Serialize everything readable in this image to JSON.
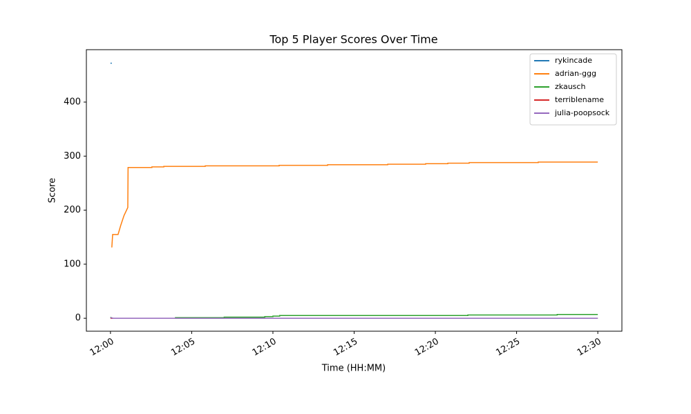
{
  "chart_data": {
    "type": "line",
    "title": "Top 5 Player Scores Over Time",
    "x_label": "Time (HH:MM)",
    "y_label": "Score",
    "xlim": [
      "11:58:31",
      "12:31:29"
    ],
    "xticks": [
      {
        "value": "12:00:00",
        "label": "12:00"
      },
      {
        "value": "12:05:00",
        "label": "12:05"
      },
      {
        "value": "12:10:00",
        "label": "12:10"
      },
      {
        "value": "12:15:00",
        "label": "12:15"
      },
      {
        "value": "12:20:00",
        "label": "12:20"
      },
      {
        "value": "12:25:00",
        "label": "12:25"
      },
      {
        "value": "12:30:00",
        "label": "12:30"
      }
    ],
    "ylim": [
      -24,
      497
    ],
    "yticks": [
      0,
      100,
      200,
      300,
      400
    ],
    "legend": "upper right",
    "series": [
      {
        "name": "rykincade",
        "color": "#1f77b4",
        "x": [
          "12:00:00",
          "12:00:05"
        ],
        "values": [
          472,
          472
        ]
      },
      {
        "name": "adrian-ggg",
        "color": "#ff7f0e",
        "x": [
          "12:00:05",
          "12:00:08",
          "12:00:28",
          "12:00:38",
          "12:00:50",
          "12:01:04",
          "12:01:05",
          "12:02:33",
          "12:02:33",
          "12:03:17",
          "12:03:17",
          "12:05:50",
          "12:05:50",
          "12:10:23",
          "12:10:23",
          "12:13:22",
          "12:13:22",
          "12:17:04",
          "12:17:04",
          "12:19:24",
          "12:19:24",
          "12:20:46",
          "12:20:46",
          "12:22:05",
          "12:22:05",
          "12:26:20",
          "12:26:20",
          "12:30:00"
        ],
        "values": [
          131,
          155,
          155,
          172,
          190,
          205,
          279,
          279,
          280,
          280,
          281,
          281,
          282,
          282,
          283,
          283,
          284,
          284,
          285,
          285,
          286,
          286,
          287,
          287,
          288,
          288,
          289,
          289
        ]
      },
      {
        "name": "zkausch",
        "color": "#2ca02c",
        "x": [
          "12:00:00",
          "12:00:05",
          "12:04:00",
          "12:04:00",
          "12:07:00",
          "12:07:00",
          "12:09:30",
          "12:09:30",
          "12:10:00",
          "12:10:00",
          "12:10:25",
          "12:10:25",
          "12:22:00",
          "12:22:00",
          "12:27:30",
          "12:27:30",
          "12:30:00"
        ],
        "values": [
          2,
          0,
          0,
          1,
          1,
          2,
          2,
          3,
          3,
          4,
          4,
          5,
          5,
          6,
          6,
          7,
          7
        ]
      },
      {
        "name": "terriblename",
        "color": "#d62728",
        "x": [
          "12:00:00",
          "12:30:00"
        ],
        "values": [
          0,
          0
        ]
      },
      {
        "name": "julia-poopsock",
        "color": "#9467bd",
        "x": [
          "12:00:00",
          "12:00:10",
          "12:30:00"
        ],
        "values": [
          1,
          0,
          0
        ]
      }
    ]
  }
}
